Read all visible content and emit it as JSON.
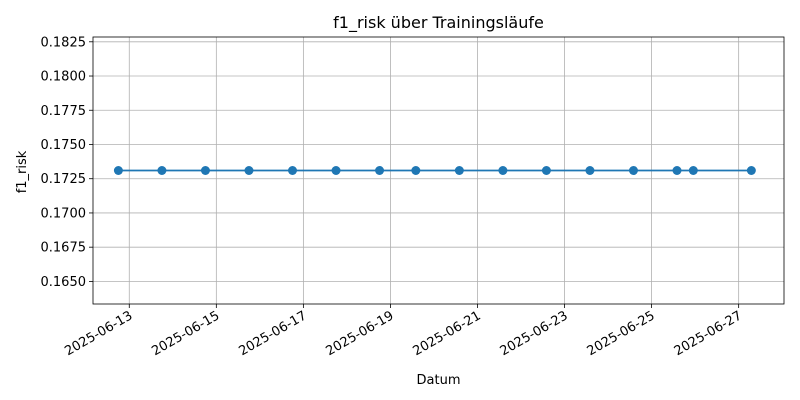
{
  "chart_data": {
    "type": "line",
    "title": "f1_risk über Trainingsläufe",
    "xlabel": "Datum",
    "ylabel": "f1_risk",
    "grid": true,
    "x_tick_labels": [
      "2025-06-13",
      "2025-06-15",
      "2025-06-17",
      "2025-06-19",
      "2025-06-21",
      "2025-06-23",
      "2025-06-25",
      "2025-06-27"
    ],
    "y_tick_labels": [
      "0.1650",
      "0.1675",
      "0.1700",
      "0.1725",
      "0.1750",
      "0.1775",
      "0.1800",
      "0.1825"
    ],
    "xlim": [
      "2025-06-12T04:00",
      "2025-06-28T01:00"
    ],
    "ylim": [
      0.16335,
      0.18285
    ],
    "series": [
      {
        "color": "#1f77b4",
        "marker": "circle",
        "x": [
          "2025-06-12T18:00",
          "2025-06-13T18:00",
          "2025-06-14T18:00",
          "2025-06-15T18:00",
          "2025-06-16T18:00",
          "2025-06-17T18:00",
          "2025-06-18T18:00",
          "2025-06-19T14:00",
          "2025-06-20T14:00",
          "2025-06-21T14:00",
          "2025-06-22T14:00",
          "2025-06-23T14:00",
          "2025-06-24T14:00",
          "2025-06-25T14:00",
          "2025-06-25T23:00",
          "2025-06-27T07:00"
        ],
        "y": [
          0.1731,
          0.1731,
          0.1731,
          0.1731,
          0.1731,
          0.1731,
          0.1731,
          0.1731,
          0.1731,
          0.1731,
          0.1731,
          0.1731,
          0.1731,
          0.1731,
          0.1731,
          0.1731
        ]
      }
    ]
  }
}
